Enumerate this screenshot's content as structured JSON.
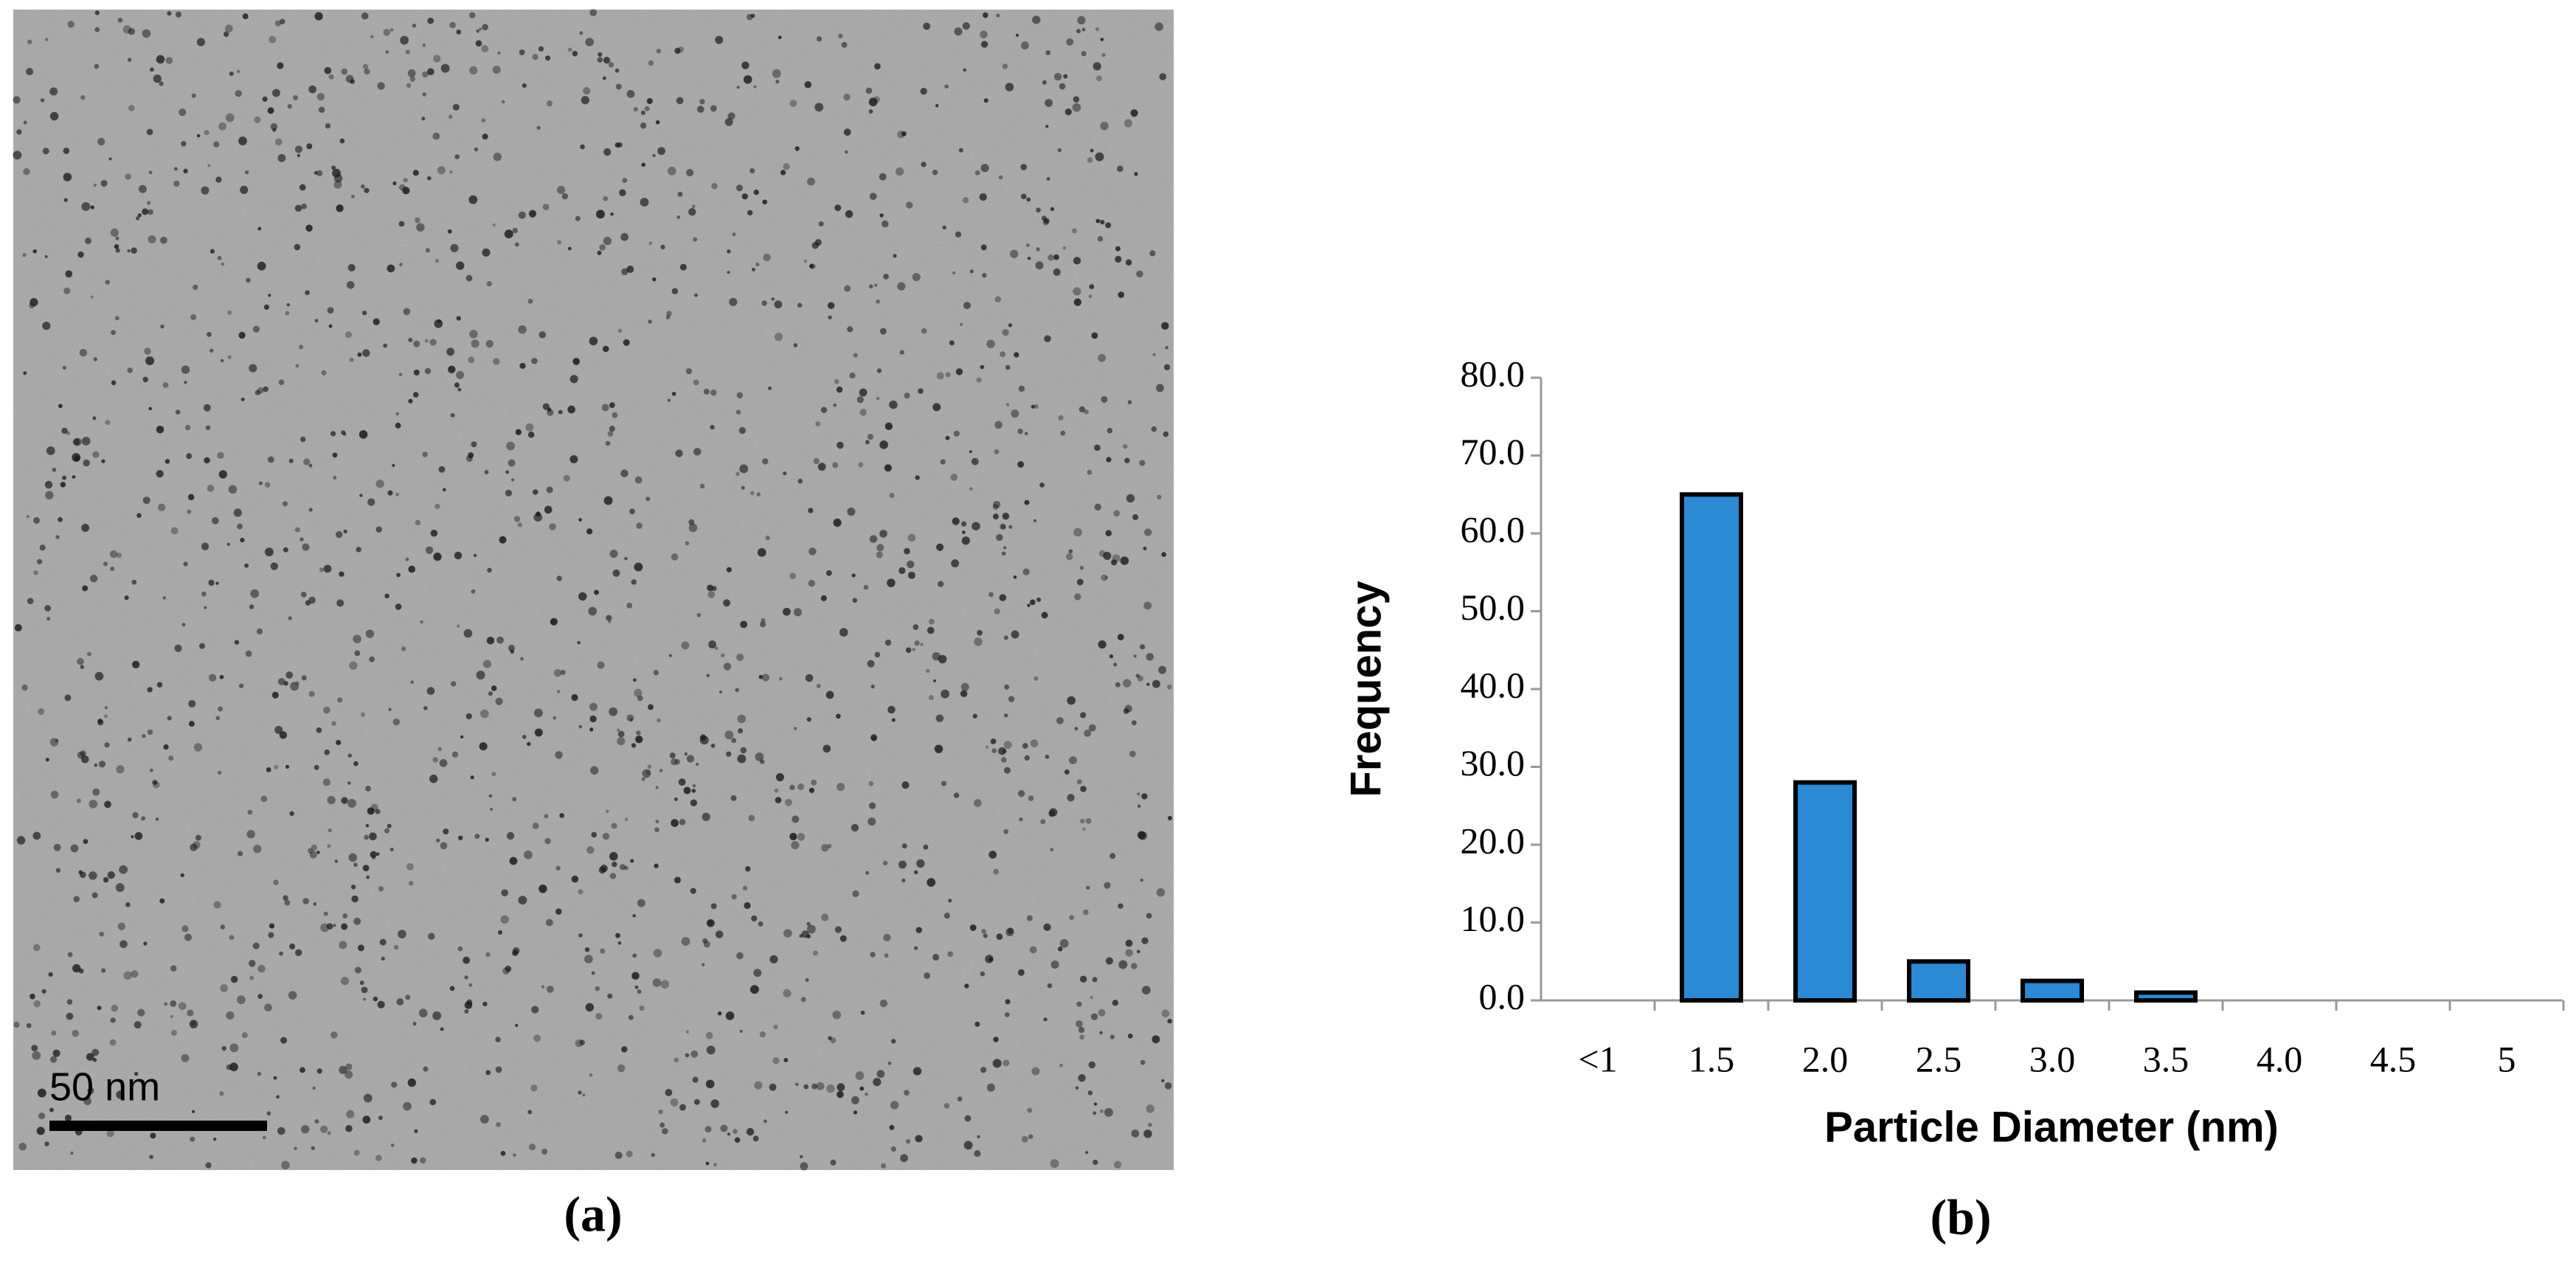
{
  "panel_a": {
    "scale_bar": "50 nm",
    "label": "(a)"
  },
  "panel_b": {
    "label": "(b)"
  },
  "chart_data": {
    "type": "bar",
    "x_label": "Particle Diameter (nm)",
    "y_label": "Frequency",
    "categories": [
      "<1",
      "1.5",
      "2.0",
      "2.5",
      "3.0",
      "3.5",
      "4.0",
      "4.5",
      "5"
    ],
    "values": [
      0,
      65,
      28,
      5,
      2.5,
      1,
      0,
      0,
      0
    ],
    "color": "#2b8ad6",
    "ylim": [
      0,
      80
    ],
    "yticks": [
      {
        "value": 0,
        "label": "0.0"
      },
      {
        "value": 10,
        "label": "10.0"
      },
      {
        "value": 20,
        "label": "20.0"
      },
      {
        "value": 30,
        "label": "30.0"
      },
      {
        "value": 40,
        "label": "40.0"
      },
      {
        "value": 50,
        "label": "50.0"
      },
      {
        "value": 60,
        "label": "60.0"
      },
      {
        "value": 70,
        "label": "70.0"
      },
      {
        "value": 80,
        "label": "80.0"
      }
    ],
    "grid": false
  }
}
